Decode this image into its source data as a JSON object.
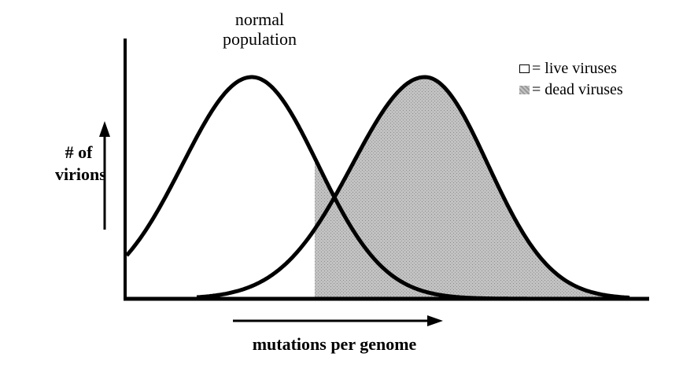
{
  "labels": {
    "curve_label_line1": "normal",
    "curve_label_line2": "population",
    "y_label_line1": "# of",
    "y_label_line2": "virions",
    "x_label": "mutations per genome"
  },
  "legend": {
    "live": "= live viruses",
    "dead": "= dead viruses"
  },
  "colors": {
    "stroke": "#000000",
    "dead_fill": "#b4b4b4",
    "background": "#ffffff"
  },
  "icons": {
    "y_arrow": "up-arrow-icon",
    "x_arrow": "right-arrow-icon"
  }
}
